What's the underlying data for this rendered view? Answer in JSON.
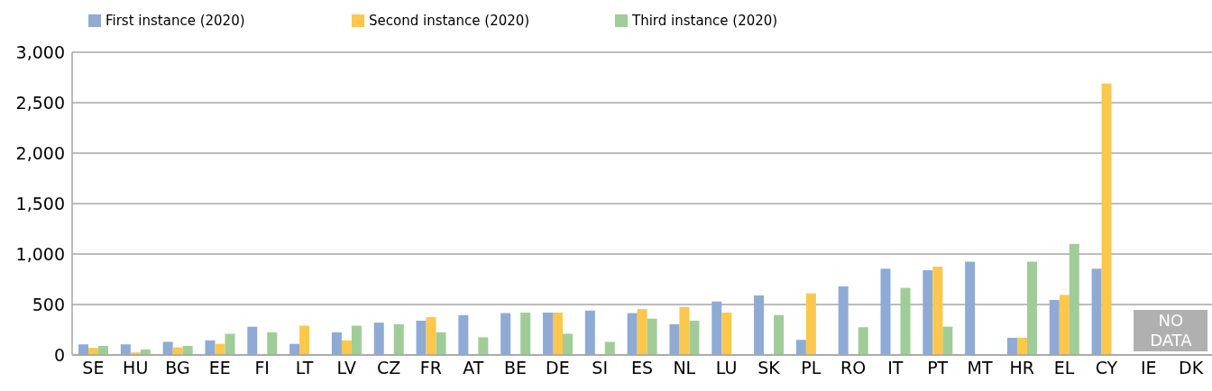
{
  "chart_data": {
    "type": "bar",
    "categories": [
      "SE",
      "HU",
      "BG",
      "EE",
      "FI",
      "LT",
      "LV",
      "CZ",
      "FR",
      "AT",
      "BE",
      "DE",
      "SI",
      "ES",
      "NL",
      "LU",
      "SK",
      "PL",
      "RO",
      "IT",
      "PT",
      "MT",
      "HR",
      "EL",
      "CY",
      "IE",
      "DK"
    ],
    "series": [
      {
        "name": "First instance (2020)",
        "color": "#8faad4",
        "values": [
          105,
          105,
          130,
          145,
          280,
          110,
          225,
          320,
          340,
          395,
          415,
          420,
          440,
          415,
          305,
          530,
          590,
          150,
          680,
          855,
          840,
          925,
          170,
          545,
          855,
          null,
          null
        ]
      },
      {
        "name": "Second instance (2020)",
        "color": "#fcc74d",
        "values": [
          70,
          25,
          75,
          110,
          null,
          290,
          145,
          null,
          375,
          null,
          null,
          420,
          null,
          455,
          475,
          420,
          null,
          610,
          null,
          null,
          875,
          null,
          170,
          595,
          2690,
          null,
          null
        ]
      },
      {
        "name": "Third instance (2020)",
        "color": "#a0cc98",
        "values": [
          90,
          55,
          90,
          210,
          225,
          null,
          290,
          305,
          225,
          175,
          420,
          210,
          130,
          360,
          340,
          null,
          395,
          null,
          275,
          665,
          280,
          null,
          925,
          1100,
          null,
          null,
          null
        ]
      }
    ],
    "ylim": [
      0,
      3000
    ],
    "yticks": [
      0,
      500,
      {
        "value": 1000,
        "label": "1,000"
      },
      {
        "value": 1500,
        "label": "1,500"
      },
      {
        "value": 2000,
        "label": "2,000"
      },
      {
        "value": 2500,
        "label": "2,500"
      },
      {
        "value": 3000,
        "label": "3,000"
      }
    ],
    "grid": "y",
    "legend": "top left",
    "annotations": [
      "NO DATA"
    ]
  }
}
